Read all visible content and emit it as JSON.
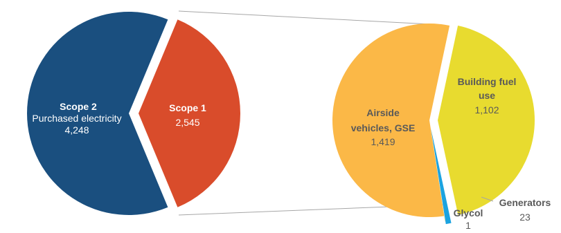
{
  "chart_data": [
    {
      "type": "pie",
      "slices": [
        {
          "name_line1": "Scope 2",
          "name_line2": "Purchased electricity",
          "value": 4248,
          "value_label": "4,248",
          "color": "#1A4F7F"
        },
        {
          "name_line1": "Scope 1",
          "name_line2": "",
          "value": 2545,
          "value_label": "2,545",
          "color": "#D94C2B"
        }
      ]
    },
    {
      "type": "pie",
      "note": "breakdown of Scope 1",
      "slices": [
        {
          "name_line1": "Building fuel",
          "name_line2": "use",
          "value": 1102,
          "value_label": "1,102",
          "color": "#E8DB2F"
        },
        {
          "name_line1": "Generators",
          "name_line2": "",
          "value": 23,
          "value_label": "23",
          "color": "#1BA3E0"
        },
        {
          "name_line1": "Glycol",
          "name_line2": "",
          "value": 1,
          "value_label": "1",
          "color": "#F6C74A"
        },
        {
          "name_line1": "Airside",
          "name_line2": "vehicles, GSE",
          "value": 1419,
          "value_label": "1,419",
          "color": "#FBB847"
        }
      ]
    }
  ],
  "colors": {
    "label_light": "#FFFFFF",
    "label_dark": "#595959",
    "connector": "#A6A6A6"
  }
}
